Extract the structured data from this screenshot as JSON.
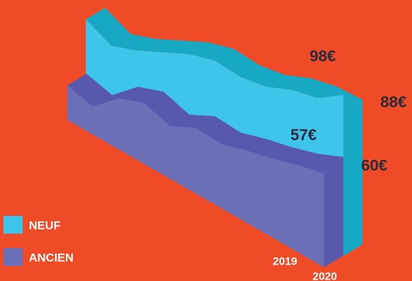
{
  "chart_data": {
    "type": "area3d",
    "categories": [
      null,
      null,
      null,
      null,
      null,
      null,
      null,
      null,
      null,
      null,
      "2019",
      "2020"
    ],
    "series": [
      {
        "name": "NEUF",
        "color": "#3ec6ea",
        "shade": "#17a9c4",
        "values": [
          54,
          47,
          53,
          61,
          69,
          74,
          73,
          76,
          83,
          87,
          98,
          88
        ],
        "value_labels": [
          null,
          null,
          null,
          null,
          null,
          null,
          null,
          null,
          null,
          null,
          "98€",
          "88€"
        ]
      },
      {
        "name": "ANCIEN",
        "color": "#6b6fb5",
        "shade": "#5859ac",
        "values": [
          21,
          17,
          31,
          37,
          32,
          40,
          39,
          44,
          48,
          53,
          57,
          60
        ],
        "value_labels": [
          null,
          null,
          null,
          null,
          null,
          null,
          null,
          null,
          null,
          null,
          "57€",
          "60€"
        ]
      }
    ],
    "legend": "bottom-left"
  }
}
